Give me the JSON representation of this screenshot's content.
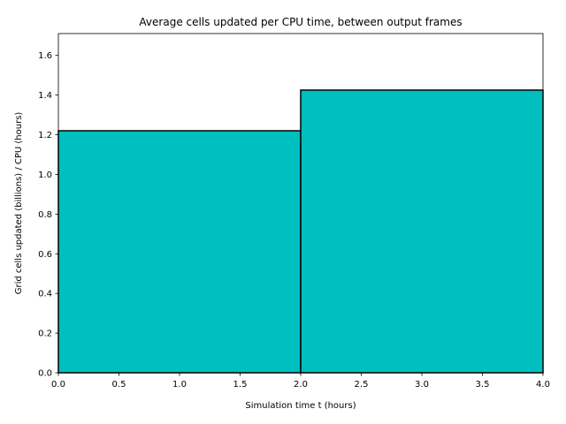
{
  "chart_data": {
    "type": "bar",
    "title": "Average cells updated per CPU time, between output frames",
    "xlabel": "Simulation time t (hours)",
    "ylabel": "Grid cells updated (billions) / CPU (hours)",
    "bins": [
      {
        "x_start": 0.0,
        "x_end": 2.0,
        "value": 1.22
      },
      {
        "x_start": 2.0,
        "x_end": 4.0,
        "value": 1.425
      }
    ],
    "xlim": [
      0.0,
      4.0
    ],
    "ylim": [
      0.0,
      1.71
    ],
    "x_ticks": [
      0.0,
      0.5,
      1.0,
      1.5,
      2.0,
      2.5,
      3.0,
      3.5,
      4.0
    ],
    "x_tick_labels": [
      "0.0",
      "0.5",
      "1.0",
      "1.5",
      "2.0",
      "2.5",
      "3.0",
      "3.5",
      "4.0"
    ],
    "y_ticks": [
      0.0,
      0.2,
      0.4,
      0.6,
      0.8,
      1.0,
      1.2,
      1.4,
      1.6
    ],
    "y_tick_labels": [
      "0.0",
      "0.2",
      "0.4",
      "0.6",
      "0.8",
      "1.0",
      "1.2",
      "1.4",
      "1.6"
    ],
    "bar_color": "#00bfbf",
    "edge_color": "#000000",
    "grid": false,
    "legend": false
  }
}
